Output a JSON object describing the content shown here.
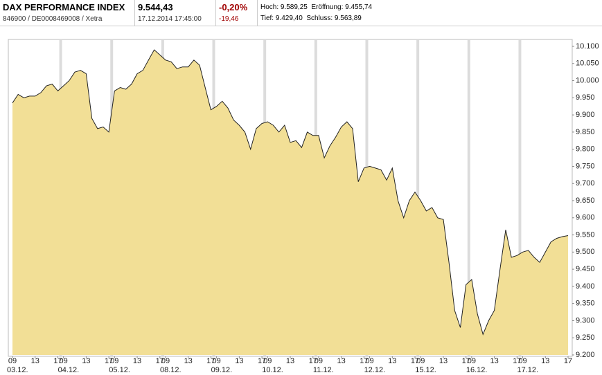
{
  "header": {
    "name": "DAX PERFORMANCE INDEX",
    "ids": "846900 / DE0008469008 / Xetra",
    "price": "9.544,43",
    "datetime": "17.12.2014 17:45:00",
    "change_pct": "-0,20%",
    "change_abs": "-19,46",
    "high": "Hoch: 9.589,25",
    "open": "Eröffnung: 9.455,74",
    "low": "Tief: 9.429,40",
    "close": "Schluss: 9.563,89"
  },
  "chart_data": {
    "type": "area",
    "color": "#f2df96",
    "line_color": "#222222",
    "categories": [
      "09",
      null,
      null,
      null,
      "13",
      null,
      null,
      null,
      "17",
      "09",
      null,
      null,
      null,
      "13",
      null,
      null,
      null,
      "17",
      "09",
      null,
      null,
      null,
      "13",
      null,
      null,
      null,
      "17",
      "09",
      null,
      null,
      null,
      "13",
      null,
      null,
      null,
      "17",
      "09",
      null,
      null,
      null,
      "13",
      null,
      null,
      null,
      "17",
      "09",
      null,
      null,
      null,
      "13",
      null,
      null,
      null,
      "17",
      "09",
      null,
      null,
      null,
      "13",
      null,
      null,
      null,
      "17",
      "09",
      null,
      null,
      null,
      "13",
      null,
      null,
      null,
      "17",
      "09",
      null,
      null,
      null,
      "13",
      null,
      null,
      null,
      "17",
      "09",
      null,
      null,
      null,
      "13",
      null,
      null,
      null,
      "17",
      "09",
      null,
      null,
      null,
      "13",
      null,
      null,
      null,
      "17"
    ],
    "dates": [
      "03.12.",
      null,
      null,
      null,
      null,
      null,
      null,
      null,
      null,
      "04.12.",
      null,
      null,
      null,
      null,
      null,
      null,
      null,
      null,
      "05.12.",
      null,
      null,
      null,
      null,
      null,
      null,
      null,
      null,
      "08.12.",
      null,
      null,
      null,
      null,
      null,
      null,
      null,
      null,
      "09.12.",
      null,
      null,
      null,
      null,
      null,
      null,
      null,
      null,
      "10.12.",
      null,
      null,
      null,
      null,
      null,
      null,
      null,
      null,
      "11.12.",
      null,
      null,
      null,
      null,
      null,
      null,
      null,
      null,
      "12.12.",
      null,
      null,
      null,
      null,
      null,
      null,
      null,
      null,
      "15.12.",
      null,
      null,
      null,
      null,
      null,
      null,
      null,
      null,
      "16.12.",
      null,
      null,
      null,
      null,
      null,
      null,
      null,
      null,
      "17.12.",
      null,
      null,
      null,
      null,
      null,
      null,
      null,
      null
    ],
    "values": [
      9935,
      9960,
      9950,
      9955,
      9955,
      9965,
      9985,
      9990,
      9970,
      9985,
      10000,
      10025,
      10030,
      10020,
      9890,
      9860,
      9865,
      9850,
      9970,
      9980,
      9975,
      9990,
      10020,
      10030,
      10060,
      10090,
      10075,
      10060,
      10055,
      10035,
      10040,
      10040,
      10060,
      10045,
      9980,
      9915,
      9925,
      9940,
      9920,
      9885,
      9870,
      9850,
      9800,
      9860,
      9875,
      9880,
      9870,
      9850,
      9870,
      9820,
      9825,
      9805,
      9850,
      9840,
      9840,
      9775,
      9810,
      9835,
      9865,
      9880,
      9860,
      9705,
      9745,
      9750,
      9745,
      9740,
      9710,
      9745,
      9650,
      9600,
      9650,
      9675,
      9650,
      9620,
      9630,
      9600,
      9595,
      9470,
      9330,
      9280,
      9405,
      9420,
      9320,
      9260,
      9300,
      9330,
      9450,
      9565,
      9485,
      9490,
      9500,
      9505,
      9485,
      9470,
      9500,
      9530,
      9540,
      9545,
      9548
    ],
    "ylim": [
      9200,
      10100
    ],
    "yticks": [
      {
        "value": 9200,
        "label": "9.200"
      },
      {
        "value": 9250,
        "label": "9.250"
      },
      {
        "value": 9300,
        "label": "9.300"
      },
      {
        "value": 9350,
        "label": "9.350"
      },
      {
        "value": 9400,
        "label": "9.400"
      },
      {
        "value": 9450,
        "label": "9.450"
      },
      {
        "value": 9500,
        "label": "9.500"
      },
      {
        "value": 9550,
        "label": "9.550"
      },
      {
        "value": 9600,
        "label": "9.600"
      },
      {
        "value": 9650,
        "label": "9.650"
      },
      {
        "value": 9700,
        "label": "9.700"
      },
      {
        "value": 9750,
        "label": "9.750"
      },
      {
        "value": 9800,
        "label": "9.800"
      },
      {
        "value": 9850,
        "label": "9.850"
      },
      {
        "value": 9900,
        "label": "9.900"
      },
      {
        "value": 9950,
        "label": "9.950"
      },
      {
        "value": 10000,
        "label": "10.000"
      },
      {
        "value": 10050,
        "label": "10.050"
      },
      {
        "value": 10100,
        "label": "10.100"
      }
    ]
  }
}
